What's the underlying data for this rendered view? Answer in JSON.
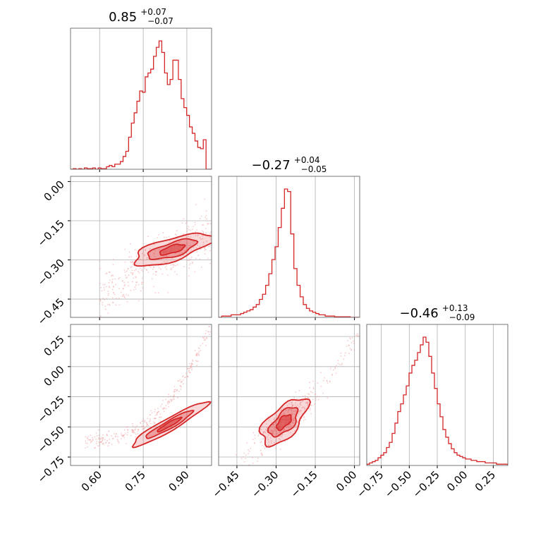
{
  "figure": {
    "type": "corner_plot",
    "color": "#d62728",
    "fill_color": "#d62728",
    "grid": true
  },
  "chart_data": [
    {
      "type": "histogram",
      "panel": "marginal-param-1",
      "title": {
        "value": "0.85",
        "plus": "+0.07",
        "minus": "−0.07"
      },
      "xlim": [
        0.5,
        0.985
      ],
      "x_ticks": [
        0.6,
        0.75,
        0.9
      ],
      "bins": [
        0.5,
        0.5097,
        0.5194,
        0.5291,
        0.5388,
        0.5485,
        0.5582,
        0.5679,
        0.5776,
        0.5873,
        0.597,
        0.6067,
        0.6164,
        0.6261,
        0.6358,
        0.6455,
        0.6552,
        0.6649,
        0.6746,
        0.6843,
        0.694,
        0.7037,
        0.7134,
        0.7231,
        0.7328,
        0.7425,
        0.7522,
        0.7619,
        0.7716,
        0.7813,
        0.791,
        0.8007,
        0.8104,
        0.8201,
        0.8298,
        0.8395,
        0.8492,
        0.8589,
        0.8686,
        0.8783,
        0.888,
        0.8977,
        0.9074,
        0.9171,
        0.9268,
        0.9365,
        0.9462,
        0.9559,
        0.9656,
        0.9753,
        0.985
      ],
      "counts": [
        0,
        0.5,
        0,
        0.5,
        0,
        1,
        0.5,
        0.5,
        1,
        0,
        1,
        0.5,
        0.5,
        2,
        3,
        2,
        4,
        4,
        6,
        10,
        14,
        25,
        36,
        44,
        53,
        61,
        60,
        72,
        75,
        78,
        88,
        95,
        100,
        91,
        75,
        66,
        70,
        85,
        85,
        70,
        55,
        48,
        42,
        33,
        28,
        22,
        17,
        16,
        23,
        0,
        0
      ]
    },
    {
      "type": "histogram",
      "panel": "marginal-param-2",
      "title": {
        "value": "−0.27",
        "plus": "+0.04",
        "minus": "−0.05"
      },
      "xlim": [
        -0.52,
        0.02
      ],
      "x_ticks": [
        -0.45,
        -0.3,
        -0.15,
        0.0
      ],
      "counts": [
        0,
        1,
        1,
        1,
        2,
        2,
        2,
        3,
        4,
        5,
        6,
        8,
        10,
        14,
        18,
        25,
        34,
        45,
        55,
        70,
        85,
        100,
        98,
        65,
        38,
        25,
        16,
        10,
        7,
        5,
        4,
        3,
        2,
        2,
        1,
        1,
        1,
        0.5,
        0.5,
        0.5,
        0.5,
        0.5,
        0,
        0,
        0
      ]
    },
    {
      "type": "histogram",
      "panel": "marginal-param-3",
      "title": {
        "value": "−0.46",
        "plus": "+0.13",
        "minus": "−0.09"
      },
      "xlim": [
        -0.88,
        0.38
      ],
      "x_ticks": [
        -0.75,
        -0.5,
        -0.25,
        0.0,
        0.25
      ],
      "counts": [
        1,
        2,
        3,
        4,
        6,
        8,
        10,
        14,
        18,
        25,
        33,
        42,
        48,
        55,
        62,
        72,
        78,
        82,
        88,
        94,
        100,
        96,
        85,
        72,
        60,
        48,
        38,
        28,
        22,
        17,
        13,
        10,
        8,
        7,
        6,
        5,
        5,
        4,
        4,
        3,
        3,
        3,
        2,
        2,
        2,
        2,
        1,
        1,
        1,
        1
      ]
    },
    {
      "type": "2d-density",
      "panel": "joint-param-1-2",
      "xlim": [
        0.5,
        0.985
      ],
      "ylim": [
        -0.52,
        0.02
      ],
      "y_ticks": [
        0.0,
        -0.15,
        -0.3,
        -0.45
      ],
      "levels": [
        0.39,
        0.86,
        0.99
      ]
    },
    {
      "type": "2d-density",
      "panel": "joint-param-1-3",
      "xlim": [
        0.5,
        0.985
      ],
      "ylim": [
        -0.82,
        0.35
      ],
      "x_ticks": [
        0.6,
        0.75,
        0.9
      ],
      "y_ticks": [
        0.25,
        0.0,
        -0.25,
        -0.5,
        -0.75
      ],
      "levels": [
        0.39,
        0.86,
        0.99
      ]
    },
    {
      "type": "2d-density",
      "panel": "joint-param-2-3",
      "xlim": [
        -0.52,
        0.02
      ],
      "ylim": [
        -0.82,
        0.35
      ],
      "x_ticks": [
        -0.45,
        -0.3,
        -0.15,
        0.0
      ],
      "levels": [
        0.39,
        0.86,
        0.99
      ]
    }
  ],
  "tick_labels": {
    "x1": [
      "0.60",
      "0.75",
      "0.90"
    ],
    "x2": [
      "−0.45",
      "−0.30",
      "−0.15",
      "0.00"
    ],
    "x3": [
      "−0.75",
      "−0.50",
      "−0.25",
      "0.00",
      "0.25"
    ],
    "y2": [
      "0.00",
      "−0.15",
      "−0.30",
      "−0.45"
    ],
    "y3": [
      "0.25",
      "0.00",
      "−0.25",
      "−0.50",
      "−0.75"
    ]
  }
}
